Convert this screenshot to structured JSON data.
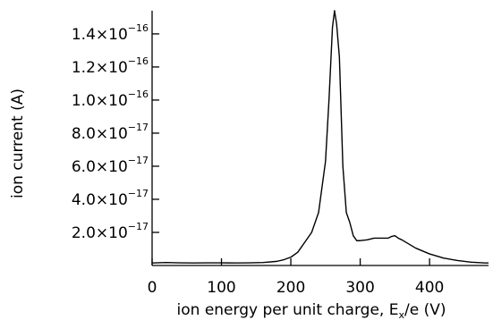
{
  "chart_data": {
    "type": "line",
    "title": "",
    "xlabel": "ion energy per unit charge, E",
    "xlabel_subscript": "x",
    "xlabel_suffix": "/e (V)",
    "ylabel": "ion current (A)",
    "xlim": [
      0,
      485
    ],
    "ylim": [
      0,
      1.54e-16
    ],
    "x_ticks": [
      {
        "value": 0,
        "label": "0"
      },
      {
        "value": 100,
        "label": "100"
      },
      {
        "value": 200,
        "label": "200"
      },
      {
        "value": 300,
        "label": "300"
      },
      {
        "value": 400,
        "label": "400"
      }
    ],
    "y_ticks": [
      {
        "value": 2e-17,
        "mantissa": "2.0×10",
        "exponent": "−17"
      },
      {
        "value": 4e-17,
        "mantissa": "4.0×10",
        "exponent": "−17"
      },
      {
        "value": 6e-17,
        "mantissa": "6.0×10",
        "exponent": "−17"
      },
      {
        "value": 8e-17,
        "mantissa": "8.0×10",
        "exponent": "−17"
      },
      {
        "value": 1e-16,
        "mantissa": "1.0×10",
        "exponent": "−16"
      },
      {
        "value": 1.2e-16,
        "mantissa": "1.2×10",
        "exponent": "−16"
      },
      {
        "value": 1.4e-16,
        "mantissa": "1.4×10",
        "exponent": "−16"
      }
    ],
    "grid": false,
    "series": [
      {
        "x": [
          0,
          20,
          40,
          60,
          80,
          100,
          120,
          140,
          160,
          180,
          190,
          200,
          210,
          220,
          230,
          240,
          250,
          255,
          260,
          263,
          266,
          270,
          275,
          280,
          285,
          290,
          295,
          300,
          310,
          320,
          330,
          340,
          345,
          350,
          355,
          360,
          370,
          380,
          400,
          420,
          440,
          460,
          480,
          485
        ],
        "y": [
          1.5e-18,
          1.8e-18,
          1.6e-18,
          1.5e-18,
          1.6e-18,
          1.6e-18,
          1.5e-18,
          1.6e-18,
          1.8e-18,
          2.5e-18,
          3.5e-18,
          5e-18,
          8e-18,
          1.4e-17,
          2e-17,
          3.2e-17,
          6.3e-17,
          1e-16,
          1.44e-16,
          1.54e-16,
          1.46e-16,
          1.26e-16,
          6e-17,
          3.2e-17,
          2.6e-17,
          1.8e-17,
          1.5e-17,
          1.5e-17,
          1.55e-17,
          1.65e-17,
          1.65e-17,
          1.65e-17,
          1.75e-17,
          1.8e-17,
          1.65e-17,
          1.55e-17,
          1.3e-17,
          1.05e-17,
          7e-18,
          4.5e-18,
          3e-18,
          2e-18,
          1.5e-18,
          1.5e-18
        ]
      }
    ]
  }
}
